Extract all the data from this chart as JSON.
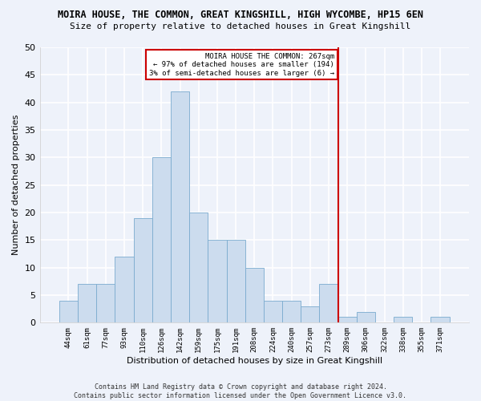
{
  "title": "MOIRA HOUSE, THE COMMON, GREAT KINGSHILL, HIGH WYCOMBE, HP15 6EN",
  "subtitle": "Size of property relative to detached houses in Great Kingshill",
  "xlabel": "Distribution of detached houses by size in Great Kingshill",
  "ylabel": "Number of detached properties",
  "categories": [
    "44sqm",
    "61sqm",
    "77sqm",
    "93sqm",
    "110sqm",
    "126sqm",
    "142sqm",
    "159sqm",
    "175sqm",
    "191sqm",
    "208sqm",
    "224sqm",
    "240sqm",
    "257sqm",
    "273sqm",
    "289sqm",
    "306sqm",
    "322sqm",
    "338sqm",
    "355sqm",
    "371sqm"
  ],
  "values": [
    4,
    7,
    7,
    12,
    19,
    30,
    42,
    20,
    15,
    15,
    10,
    4,
    4,
    3,
    7,
    1,
    2,
    0,
    1,
    0,
    1
  ],
  "bar_color": "#ccdcee",
  "bar_edge_color": "#7aabcf",
  "background_color": "#eef2fa",
  "grid_color": "#ffffff",
  "marker_index": 14,
  "marker_color": "#cc0000",
  "ylim": [
    0,
    50
  ],
  "yticks": [
    0,
    5,
    10,
    15,
    20,
    25,
    30,
    35,
    40,
    45,
    50
  ],
  "annotation_title": "MOIRA HOUSE THE COMMON: 267sqm",
  "annotation_line1": "← 97% of detached houses are smaller (194)",
  "annotation_line2": "3% of semi-detached houses are larger (6) →",
  "footer": "Contains HM Land Registry data © Crown copyright and database right 2024.\nContains public sector information licensed under the Open Government Licence v3.0."
}
